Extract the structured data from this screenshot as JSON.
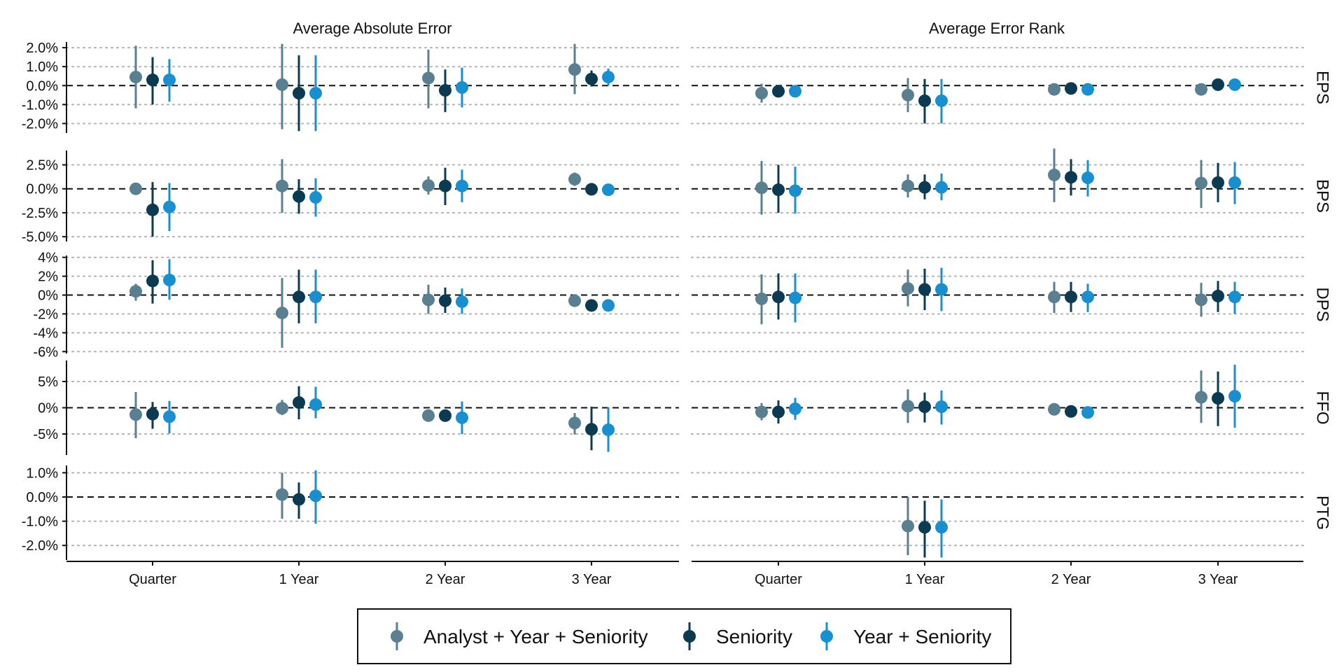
{
  "chart_data": {
    "type": "scatter",
    "col_titles": [
      "Average Absolute Error",
      "Average Error Rank"
    ],
    "row_labels": [
      "EPS",
      "BPS",
      "DPS",
      "FFO",
      "PTG"
    ],
    "categories": [
      "Quarter",
      "1 Year",
      "2 Year",
      "3 Year"
    ],
    "colors": {
      "Analyst + Year + Seniority": "#5a7f91",
      "Seniority": "#0b3a51",
      "Year + Seniority": "#1a8fd0"
    },
    "legend": {
      "placement": "bottom",
      "entries": [
        "Analyst + Year + Seniority",
        "Seniority",
        "Year + Seniority"
      ]
    },
    "grid": "horizontal-dotted",
    "reference_line": 0,
    "panels_rows": [
      {
        "ylim": [
          -2.5,
          2.3
        ],
        "yticks": [
          2,
          1,
          0,
          -1,
          -2
        ],
        "ytick_labels": [
          "2.0%",
          "1.0%",
          "0.0%",
          "-1.0%",
          "-2.0%"
        ],
        "points": [
          [
            [
              [
                0.45,
                -1.2,
                2.1
              ],
              [
                0.3,
                -1.0,
                1.5
              ],
              [
                0.3,
                -0.85,
                1.4
              ]
            ],
            [
              [
                0.05,
                -2.3,
                2.2
              ],
              [
                -0.4,
                -2.4,
                1.6
              ],
              [
                -0.4,
                -2.4,
                1.6
              ]
            ],
            [
              [
                0.4,
                -1.2,
                1.9
              ],
              [
                -0.25,
                -1.4,
                0.85
              ],
              [
                -0.1,
                -1.15,
                0.95
              ]
            ],
            [
              [
                0.85,
                -0.45,
                2.2
              ],
              [
                0.35,
                -0.05,
                0.8
              ],
              [
                0.45,
                0.0,
                0.9
              ]
            ]
          ],
          [
            [
              [
                -0.4,
                -0.9,
                0.1
              ],
              [
                -0.3,
                -0.6,
                0.0
              ],
              [
                -0.3,
                -0.6,
                0.0
              ]
            ],
            [
              [
                -0.5,
                -1.4,
                0.4
              ],
              [
                -0.8,
                -2.0,
                0.35
              ],
              [
                -0.8,
                -2.0,
                0.35
              ]
            ],
            [
              [
                -0.2,
                -0.4,
                0.05
              ],
              [
                -0.15,
                -0.4,
                0.1
              ],
              [
                -0.2,
                -0.45,
                0.05
              ]
            ],
            [
              [
                -0.2,
                -0.5,
                0.1
              ],
              [
                0.05,
                -0.1,
                0.2
              ],
              [
                0.05,
                -0.1,
                0.2
              ]
            ]
          ]
        ]
      },
      {
        "ylim": [
          -5.5,
          4.0
        ],
        "yticks": [
          2.5,
          0,
          -2.5,
          -5
        ],
        "ytick_labels": [
          "2.5%",
          "0.0%",
          "-2.5%",
          "-5.0%"
        ],
        "points": [
          [
            [
              [
                0.0,
                -0.1,
                0.1
              ],
              [
                -2.2,
                -5.0,
                0.7
              ],
              [
                -1.9,
                -4.4,
                0.6
              ]
            ],
            [
              [
                0.3,
                -2.5,
                3.1
              ],
              [
                -0.8,
                -2.6,
                1.0
              ],
              [
                -0.9,
                -2.9,
                1.1
              ]
            ],
            [
              [
                0.35,
                -0.6,
                1.3
              ],
              [
                0.3,
                -1.7,
                2.2
              ],
              [
                0.3,
                -1.4,
                2.0
              ]
            ],
            [
              [
                1.0,
                0.3,
                1.7
              ],
              [
                -0.05,
                -0.2,
                0.1
              ],
              [
                -0.1,
                -0.3,
                0.1
              ]
            ]
          ],
          [
            [
              [
                0.1,
                -2.7,
                2.9
              ],
              [
                -0.1,
                -2.5,
                2.5
              ],
              [
                -0.2,
                -2.6,
                2.3
              ]
            ],
            [
              [
                0.3,
                -0.9,
                1.5
              ],
              [
                0.15,
                -1.1,
                1.5
              ],
              [
                0.15,
                -1.2,
                1.6
              ]
            ],
            [
              [
                1.45,
                -1.4,
                4.2
              ],
              [
                1.2,
                -0.7,
                3.1
              ],
              [
                1.15,
                -0.8,
                3.0
              ]
            ],
            [
              [
                0.6,
                -2.0,
                3.0
              ],
              [
                0.65,
                -1.4,
                2.7
              ],
              [
                0.65,
                -1.6,
                2.8
              ]
            ]
          ]
        ]
      },
      {
        "ylim": [
          -6.2,
          4.2
        ],
        "yticks": [
          4,
          2,
          0,
          -2,
          -4,
          -6
        ],
        "ytick_labels": [
          "4%",
          "2%",
          "0%",
          "-2%",
          "-4%",
          "-6%"
        ],
        "points": [
          [
            [
              [
                0.4,
                -0.6,
                1.2
              ],
              [
                1.5,
                -0.9,
                3.7
              ],
              [
                1.6,
                -0.5,
                3.8
              ]
            ],
            [
              [
                -1.9,
                -5.6,
                1.8
              ],
              [
                -0.2,
                -3.0,
                2.7
              ],
              [
                -0.2,
                -3.0,
                2.7
              ]
            ],
            [
              [
                -0.5,
                -2.0,
                1.1
              ],
              [
                -0.6,
                -1.9,
                0.8
              ],
              [
                -0.7,
                -2.0,
                0.7
              ]
            ],
            [
              [
                -0.6,
                -1.0,
                -0.3
              ],
              [
                -1.1,
                -1.3,
                -0.8
              ],
              [
                -1.1,
                -1.3,
                -0.8
              ]
            ]
          ],
          [
            [
              [
                -0.4,
                -3.1,
                2.2
              ],
              [
                -0.2,
                -2.6,
                2.3
              ],
              [
                -0.3,
                -2.9,
                2.3
              ]
            ],
            [
              [
                0.7,
                -1.2,
                2.7
              ],
              [
                0.6,
                -1.6,
                2.8
              ],
              [
                0.6,
                -1.7,
                2.9
              ]
            ],
            [
              [
                -0.2,
                -1.9,
                1.4
              ],
              [
                -0.2,
                -1.8,
                1.4
              ],
              [
                -0.2,
                -1.8,
                1.2
              ]
            ],
            [
              [
                -0.5,
                -2.3,
                1.3
              ],
              [
                -0.1,
                -1.8,
                1.5
              ],
              [
                -0.2,
                -2.0,
                1.4
              ]
            ]
          ]
        ]
      },
      {
        "ylim": [
          -9.0,
          9.0
        ],
        "yticks": [
          5,
          0,
          -5
        ],
        "ytick_labels": [
          "5%",
          "0%",
          "-5%"
        ],
        "points": [
          [
            [
              [
                -1.3,
                -5.8,
                3.0
              ],
              [
                -1.2,
                -4.0,
                1.1
              ],
              [
                -1.7,
                -4.9,
                1.3
              ]
            ],
            [
              [
                -0.1,
                -1.4,
                1.5
              ],
              [
                1.0,
                -2.2,
                4.1
              ],
              [
                0.6,
                -2.0,
                4.0
              ]
            ],
            [
              [
                -1.5,
                -1.9,
                -1.1
              ],
              [
                -1.5,
                -2.0,
                -1.0
              ],
              [
                -1.9,
                -5.0,
                1.2
              ]
            ],
            [
              [
                -2.9,
                -5.1,
                -1.0
              ],
              [
                -4.1,
                -8.1,
                0.2
              ],
              [
                -4.2,
                -8.4,
                0.1
              ]
            ]
          ],
          [
            [
              [
                -0.8,
                -2.4,
                0.9
              ],
              [
                -0.8,
                -3.0,
                1.4
              ],
              [
                -0.2,
                -2.3,
                1.9
              ]
            ],
            [
              [
                0.3,
                -2.9,
                3.5
              ],
              [
                0.2,
                -2.8,
                2.9
              ],
              [
                0.2,
                -3.2,
                3.3
              ]
            ],
            [
              [
                -0.3,
                -0.8,
                0.1
              ],
              [
                -0.7,
                -1.0,
                -0.4
              ],
              [
                -0.9,
                -1.5,
                -0.4
              ]
            ],
            [
              [
                2.0,
                -2.9,
                7.1
              ],
              [
                1.8,
                -3.5,
                6.9
              ],
              [
                2.2,
                -3.8,
                8.2
              ]
            ]
          ]
        ]
      },
      {
        "ylim": [
          -2.6,
          1.3
        ],
        "yticks": [
          1,
          0,
          -1,
          -2
        ],
        "ytick_labels": [
          "1.0%",
          "0.0%",
          "-1.0%",
          "-2.0%"
        ],
        "points": [
          [
            [
              null,
              null,
              null
            ],
            [
              [
                0.1,
                -0.9,
                1.0
              ],
              [
                -0.1,
                -0.9,
                0.6
              ],
              [
                0.05,
                -1.1,
                1.1
              ]
            ],
            [
              null,
              null,
              null
            ],
            [
              null,
              null,
              null
            ]
          ],
          [
            [
              null,
              null,
              null
            ],
            [
              [
                -1.2,
                -2.4,
                0.0
              ],
              [
                -1.25,
                -2.5,
                -0.15
              ],
              [
                -1.25,
                -2.5,
                -0.1
              ]
            ],
            [
              null,
              null,
              null
            ],
            [
              null,
              null,
              null
            ]
          ]
        ]
      }
    ]
  }
}
